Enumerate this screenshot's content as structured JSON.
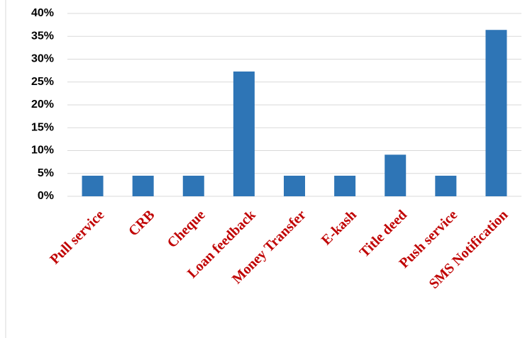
{
  "chart_data": {
    "type": "bar",
    "categories": [
      "Pull service",
      "CRB",
      "Cheque",
      "Loan feedback",
      "Money Transfer",
      "E-kash",
      "Title deed",
      "Push service",
      "SMS Notification"
    ],
    "values": [
      4.5,
      4.5,
      4.5,
      27.3,
      4.5,
      4.5,
      9.1,
      4.5,
      36.4
    ],
    "color": "#2e75b6",
    "ylim": [
      0,
      40
    ],
    "yticks": [
      {
        "value": 0,
        "label": "0%"
      },
      {
        "value": 5,
        "label": "5%"
      },
      {
        "value": 10,
        "label": "10%"
      },
      {
        "value": 15,
        "label": "15%"
      },
      {
        "value": 20,
        "label": "20%"
      },
      {
        "value": 25,
        "label": "25%"
      },
      {
        "value": 30,
        "label": "30%"
      },
      {
        "value": 35,
        "label": "35%"
      },
      {
        "value": 40,
        "label": "40%"
      }
    ],
    "grid": true
  }
}
